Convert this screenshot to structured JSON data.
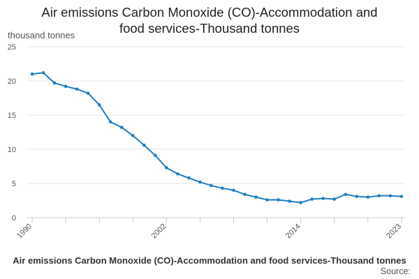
{
  "chart_data": {
    "type": "line",
    "title_lines": [
      "Air emissions Carbon Monoxide (CO)-Accommodation and",
      "food services-Thousand tonnes"
    ],
    "ylabel": "thousand tonnes",
    "xlabel": "",
    "ylim": [
      0,
      25
    ],
    "yticks": [
      0,
      5,
      10,
      15,
      20,
      25
    ],
    "xlim": [
      1990,
      2023
    ],
    "xtick_labels": [
      1990,
      2002,
      2014,
      2023
    ],
    "xminor_ticks": [
      1990,
      1993,
      1996,
      1999,
      2002,
      2005,
      2008,
      2011,
      2014,
      2017,
      2020,
      2023
    ],
    "grid": "horizontal",
    "color": "#1f7ec1",
    "series": [
      {
        "name": "Air emissions Carbon Monoxide (CO)-Accommodation and food services-Thousand tonnes",
        "x": [
          1990,
          1991,
          1992,
          1993,
          1994,
          1995,
          1996,
          1997,
          1998,
          1999,
          2000,
          2001,
          2002,
          2003,
          2004,
          2005,
          2006,
          2007,
          2008,
          2009,
          2010,
          2011,
          2012,
          2013,
          2014,
          2015,
          2016,
          2017,
          2018,
          2019,
          2020,
          2021,
          2022,
          2023
        ],
        "values": [
          21.0,
          21.2,
          19.7,
          19.2,
          18.8,
          18.2,
          16.5,
          14.0,
          13.2,
          12.0,
          10.6,
          9.1,
          7.3,
          6.4,
          5.8,
          5.2,
          4.7,
          4.3,
          4.0,
          3.4,
          3.0,
          2.6,
          2.6,
          2.4,
          2.2,
          2.7,
          2.8,
          2.7,
          3.4,
          3.1,
          3.0,
          3.2,
          3.2,
          3.1
        ]
      }
    ],
    "footer_title": "Air emissions Carbon Monoxide (CO)-Accommodation and food services-Thousand tonnes",
    "footer_source": "Source:"
  }
}
